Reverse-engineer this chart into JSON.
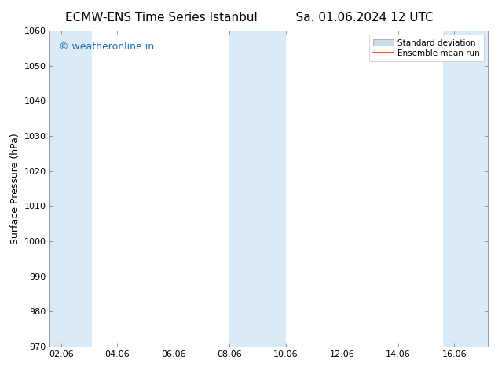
{
  "title_left": "ECMW-ENS Time Series Istanbul",
  "title_right": "Sa. 01.06.2024 12 UTC",
  "ylabel": "Surface Pressure (hPa)",
  "ylim": [
    970,
    1060
  ],
  "yticks": [
    970,
    980,
    990,
    1000,
    1010,
    1020,
    1030,
    1040,
    1050,
    1060
  ],
  "xlim_start": 1.6,
  "xlim_end": 17.2,
  "xtick_labels": [
    "02.06",
    "04.06",
    "06.06",
    "08.06",
    "10.06",
    "12.06",
    "14.06",
    "16.06"
  ],
  "xtick_positions": [
    2,
    4,
    6,
    8,
    10,
    12,
    14,
    16
  ],
  "shaded_bands": [
    {
      "x_start": 1.6,
      "x_end": 3.1
    },
    {
      "x_start": 8.0,
      "x_end": 10.0
    },
    {
      "x_start": 15.6,
      "x_end": 17.2
    }
  ],
  "shade_color": "#daeaf7",
  "shade_alpha": 1.0,
  "watermark_text": "© weatheronline.in",
  "watermark_color": "#1a6fba",
  "watermark_fontsize": 9,
  "legend_std_color": "#c8dcea",
  "legend_mean_color": "#ff2200",
  "background_color": "#ffffff",
  "title_fontsize": 11,
  "tick_fontsize": 8,
  "ylabel_fontsize": 9,
  "legend_fontsize": 7.5
}
